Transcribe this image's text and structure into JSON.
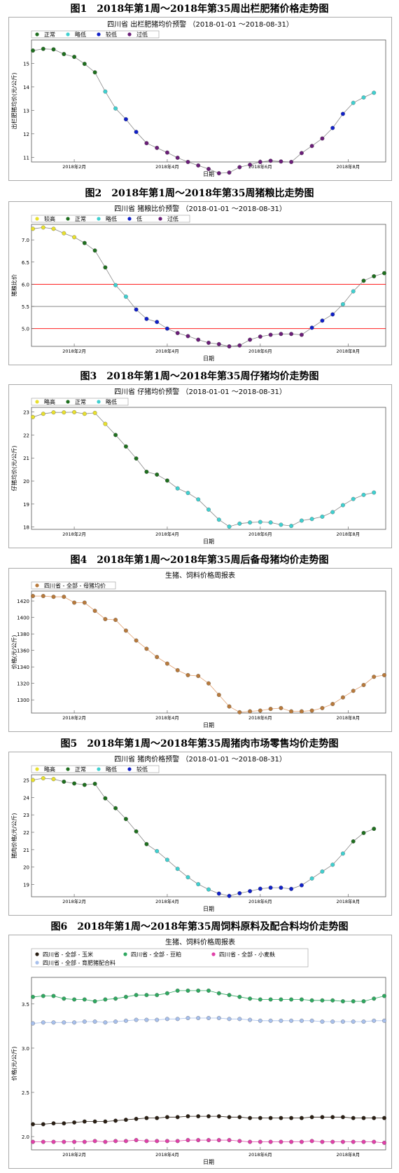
{
  "figures": [
    {
      "title": "图1　2018年第1周～2018年第35周出栏肥猪价格走势图"
    },
    {
      "title": "图2　2018年第1周～2018年第35周猪粮比走势图"
    },
    {
      "title": "图3　2018年第1周～2018年第35周仔猪均价走势图"
    },
    {
      "title": "图4　2018年第1周～2018年第35周后备母猪均价走势图"
    },
    {
      "title": "图5　2018年第1周～2018年第35周猪肉市场零售均价走势图"
    },
    {
      "title": "图6　2018年第1周～2018年第35周饲料原料及配合料均价走势图"
    }
  ],
  "colors": {
    "正常": "#1f6f1f",
    "略低": "#40d0d0",
    "较低": "#1020c8",
    "过低": "#6a1e78",
    "较高": "#e8e030",
    "略高": "#e8e030",
    "母猪": "#b87a3c"
  },
  "chart_data": [
    {
      "type": "line",
      "title": "四川省 出栏肥猪均价预警 （2018-01-01 ～2018-08-31）",
      "xlabel": "日期",
      "ylabel": "出栏肥猪均价(元/公斤)",
      "xticks": [
        "2018年2月",
        "2018年4月",
        "2018年6月",
        "2018年8月"
      ],
      "yticks": [
        11,
        12,
        13,
        14,
        15
      ],
      "ylim": [
        10.8,
        16.0
      ],
      "legend": [
        "正常",
        "略低",
        "较低",
        "过低"
      ],
      "values": [
        15.55,
        15.62,
        15.6,
        15.4,
        15.28,
        14.98,
        14.62,
        13.8,
        13.08,
        12.62,
        12.08,
        11.6,
        11.4,
        11.2,
        10.98,
        10.8,
        10.65,
        10.5,
        10.32,
        10.35,
        10.58,
        10.68,
        10.8,
        10.85,
        10.82,
        10.8,
        11.18,
        11.48,
        11.8,
        12.25,
        12.85,
        13.32,
        13.55,
        13.75
      ],
      "status": [
        "正常",
        "正常",
        "正常",
        "正常",
        "正常",
        "正常",
        "正常",
        "略低",
        "略低",
        "较低",
        "较低",
        "过低",
        "过低",
        "过低",
        "过低",
        "过低",
        "过低",
        "过低",
        "过低",
        "过低",
        "过低",
        "过低",
        "过低",
        "过低",
        "过低",
        "过低",
        "过低",
        "过低",
        "过低",
        "较低",
        "较低",
        "略低",
        "略低",
        "略低"
      ]
    },
    {
      "type": "line",
      "title": "四川省 猪粮比价预警 （2018-01-01 ～2018-08-31）",
      "xlabel": "日期",
      "ylabel": "猪粮比价",
      "xticks": [
        "2018年2月",
        "2018年4月",
        "2018年6月",
        "2018年8月"
      ],
      "yticks": [
        5.0,
        5.5,
        6.0,
        6.5,
        7.0
      ],
      "ylim": [
        4.6,
        7.35
      ],
      "refs": [
        {
          "v": 6.0,
          "c": "red"
        },
        {
          "v": 5.5,
          "c": "#777"
        },
        {
          "v": 5.0,
          "c": "red"
        }
      ],
      "legend": [
        "较高",
        "正常",
        "略低",
        "低",
        "过低"
      ],
      "values": [
        7.25,
        7.28,
        7.25,
        7.15,
        7.06,
        6.93,
        6.76,
        6.38,
        5.98,
        5.72,
        5.43,
        5.22,
        5.15,
        5.0,
        4.9,
        4.83,
        4.75,
        4.68,
        4.65,
        4.6,
        4.62,
        4.75,
        4.82,
        4.86,
        4.88,
        4.88,
        4.86,
        5.02,
        5.18,
        5.32,
        5.55,
        5.84,
        6.08,
        6.18,
        6.25
      ],
      "status": [
        "较高",
        "较高",
        "较高",
        "较高",
        "较高",
        "正常",
        "正常",
        "正常",
        "略低",
        "略低",
        "低",
        "低",
        "低",
        "低",
        "过低",
        "过低",
        "过低",
        "过低",
        "过低",
        "过低",
        "过低",
        "过低",
        "过低",
        "过低",
        "过低",
        "过低",
        "过低",
        "低",
        "低",
        "低",
        "略低",
        "略低",
        "正常",
        "正常",
        "正常"
      ]
    },
    {
      "type": "line",
      "title": "四川省 仔猪均价预警 （2018-01-01 ～2018-08-31）",
      "xlabel": "日期",
      "ylabel": "仔猪均价(元/公斤)",
      "xticks": [
        "2018年2月",
        "2018年4月",
        "2018年6月",
        "2018年8月"
      ],
      "yticks": [
        18,
        19,
        20,
        21,
        22,
        23
      ],
      "ylim": [
        17.9,
        23.2
      ],
      "legend": [
        "略高",
        "正常",
        "略低"
      ],
      "values": [
        22.78,
        22.92,
        22.98,
        22.98,
        22.99,
        22.92,
        22.96,
        22.48,
        22.0,
        21.5,
        20.98,
        20.4,
        20.28,
        20.02,
        19.68,
        19.48,
        19.2,
        18.76,
        18.32,
        18.02,
        18.15,
        18.2,
        18.22,
        18.2,
        18.1,
        18.05,
        18.28,
        18.35,
        18.45,
        18.65,
        18.95,
        19.22,
        19.4,
        19.5
      ],
      "status": [
        "略高",
        "略高",
        "略高",
        "略高",
        "略高",
        "略高",
        "略高",
        "略高",
        "正常",
        "正常",
        "正常",
        "正常",
        "正常",
        "正常",
        "略低",
        "略低",
        "略低",
        "略低",
        "略低",
        "略低",
        "略低",
        "略低",
        "略低",
        "略低",
        "略低",
        "略低",
        "略低",
        "略低",
        "略低",
        "略低",
        "略低",
        "略低",
        "略低",
        "略低"
      ]
    },
    {
      "type": "line",
      "title": "生猪、饲料价格周报表",
      "xlabel": "日期",
      "ylabel": "价格(元/公斤)",
      "xticks": [
        "2018年2月",
        "2018年4月",
        "2018年6月",
        "2018年8月"
      ],
      "yticks": [
        1300,
        1320,
        1340,
        1360,
        1380,
        1400,
        1420
      ],
      "ylim": [
        1284,
        1432
      ],
      "legend": [
        "四川省 - 全部 - 母猪均价"
      ],
      "values": [
        1426,
        1426,
        1425,
        1425,
        1418,
        1418,
        1408,
        1398,
        1397,
        1384,
        1372,
        1362,
        1352,
        1344,
        1336,
        1330,
        1329,
        1320,
        1306,
        1292,
        1285,
        1286,
        1287,
        1289,
        1290,
        1286,
        1286,
        1287,
        1290,
        1295,
        1303,
        1311,
        1318,
        1328,
        1330
      ],
      "status": [
        "母猪"
      ]
    },
    {
      "type": "line",
      "title": "四川省 猪肉价格预警 （2018-01-01 ～2018-08-31）",
      "xlabel": "日期",
      "ylabel": "猪肉价格(元/公斤)",
      "xticks": [
        "2018年2月",
        "2018年4月",
        "2018年6月",
        "2018年8月"
      ],
      "yticks": [
        19,
        20,
        21,
        22,
        23,
        24,
        25
      ],
      "ylim": [
        18.3,
        25.3
      ],
      "legend": [
        "略高",
        "正常",
        "略低",
        "较低"
      ],
      "values": [
        25.0,
        25.1,
        25.05,
        24.9,
        24.8,
        24.72,
        24.78,
        23.95,
        23.38,
        22.76,
        22.05,
        21.32,
        20.92,
        20.42,
        19.9,
        19.42,
        19.02,
        18.72,
        18.48,
        18.35,
        18.5,
        18.62,
        18.76,
        18.82,
        18.82,
        18.75,
        18.96,
        19.35,
        19.75,
        20.14,
        20.78,
        21.48,
        21.96,
        22.2
      ],
      "status": [
        "略高",
        "略高",
        "略高",
        "正常",
        "正常",
        "正常",
        "正常",
        "正常",
        "正常",
        "正常",
        "正常",
        "正常",
        "略低",
        "略低",
        "略低",
        "略低",
        "略低",
        "略低",
        "较低",
        "较低",
        "较低",
        "较低",
        "较低",
        "较低",
        "较低",
        "较低",
        "较低",
        "略低",
        "略低",
        "略低",
        "略低",
        "正常",
        "正常",
        "正常"
      ]
    },
    {
      "type": "line",
      "title": "生猪、饲料价格周报表",
      "xlabel": "日期",
      "ylabel": "价格(元/公斤)",
      "xticks": [
        "2018年2月",
        "2018年4月",
        "2018年6月",
        "2018年8月"
      ],
      "yticks": [
        2.0,
        2.5,
        3.0,
        3.5
      ],
      "ylim": [
        1.85,
        3.8
      ],
      "series": [
        {
          "name": "四川省 - 全部 - 玉米",
          "color": "#2a1f14",
          "values": [
            2.14,
            2.14,
            2.15,
            2.15,
            2.16,
            2.17,
            2.17,
            2.17,
            2.18,
            2.19,
            2.2,
            2.21,
            2.21,
            2.22,
            2.22,
            2.23,
            2.23,
            2.23,
            2.23,
            2.22,
            2.22,
            2.21,
            2.21,
            2.21,
            2.21,
            2.21,
            2.21,
            2.22,
            2.22,
            2.22,
            2.22,
            2.21,
            2.21,
            2.21,
            2.21
          ]
        },
        {
          "name": "四川省 - 全部 - 豆粕",
          "color": "#2fa860",
          "values": [
            3.58,
            3.59,
            3.59,
            3.56,
            3.55,
            3.55,
            3.53,
            3.55,
            3.56,
            3.58,
            3.6,
            3.6,
            3.6,
            3.62,
            3.65,
            3.65,
            3.65,
            3.65,
            3.62,
            3.6,
            3.58,
            3.56,
            3.55,
            3.55,
            3.55,
            3.55,
            3.55,
            3.54,
            3.54,
            3.54,
            3.53,
            3.53,
            3.53,
            3.56,
            3.59
          ]
        },
        {
          "name": "四川省 - 全部 - 小麦麸",
          "color": "#e040a8",
          "values": [
            1.94,
            1.94,
            1.94,
            1.94,
            1.94,
            1.94,
            1.95,
            1.94,
            1.95,
            1.95,
            1.96,
            1.95,
            1.95,
            1.95,
            1.95,
            1.96,
            1.96,
            1.96,
            1.96,
            1.96,
            1.95,
            1.94,
            1.94,
            1.94,
            1.94,
            1.94,
            1.94,
            1.95,
            1.94,
            1.94,
            1.94,
            1.94,
            1.94,
            1.94,
            1.93
          ]
        },
        {
          "name": "四川省 - 全部 - 育肥猪配合料",
          "color": "#a8c0ec",
          "values": [
            3.28,
            3.29,
            3.29,
            3.29,
            3.29,
            3.3,
            3.3,
            3.29,
            3.3,
            3.31,
            3.32,
            3.32,
            3.32,
            3.33,
            3.33,
            3.34,
            3.34,
            3.34,
            3.34,
            3.33,
            3.33,
            3.32,
            3.31,
            3.31,
            3.31,
            3.31,
            3.31,
            3.31,
            3.3,
            3.3,
            3.3,
            3.3,
            3.3,
            3.31,
            3.31
          ]
        }
      ]
    }
  ]
}
